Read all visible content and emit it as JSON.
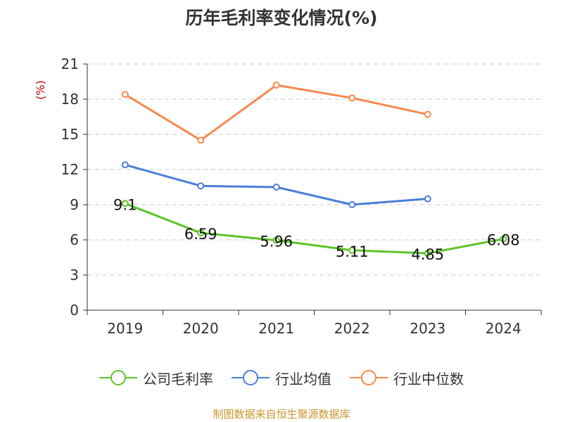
{
  "chart_data": {
    "type": "line",
    "title": "历年毛利率变化情况(%)",
    "ylabel": "(%)",
    "xlabel": "",
    "categories": [
      "2019",
      "2020",
      "2021",
      "2022",
      "2023",
      "2024"
    ],
    "ylim": [
      0,
      21
    ],
    "yticks": [
      0,
      3,
      6,
      9,
      12,
      15,
      18,
      21
    ],
    "grid": true,
    "legend_position": "bottom",
    "series": [
      {
        "name": "公司毛利率",
        "color": "#5cc428",
        "values": [
          9.1,
          6.59,
          5.96,
          5.11,
          4.85,
          6.08
        ],
        "labels": [
          "9.1",
          "6.59",
          "5.96",
          "5.11",
          "4.85",
          "6.08"
        ]
      },
      {
        "name": "行业均值",
        "color": "#4a7fd8",
        "values": [
          12.4,
          10.6,
          10.5,
          9.0,
          9.5,
          null
        ]
      },
      {
        "name": "行业中位数",
        "color": "#f5894e",
        "values": [
          18.4,
          14.5,
          19.2,
          18.1,
          16.7,
          null
        ]
      }
    ]
  },
  "source": "制图数据来自恒生聚源数据库"
}
